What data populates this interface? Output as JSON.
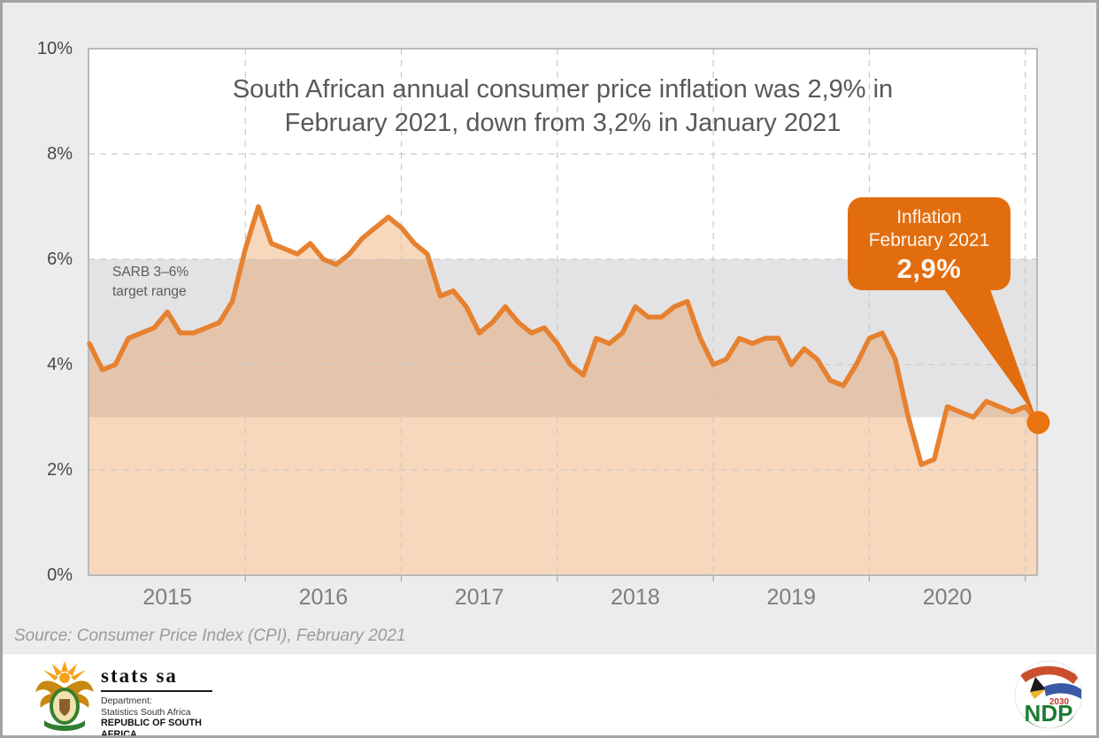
{
  "chart_data": {
    "type": "area",
    "title": "South African annual consumer price inflation was 2,9% in February 2021, down from 3,2% in January 2021",
    "title_lines": [
      "South African annual consumer price inflation was 2,9% in",
      "February 2021, down from 3,2% in January 2021"
    ],
    "frequency": "monthly",
    "x_start_month": "January 2015",
    "x_end_month": "February 2021",
    "x_tick_labels": [
      "2015",
      "2016",
      "2017",
      "2018",
      "2019",
      "2020"
    ],
    "y_tick_labels": [
      "0%",
      "2%",
      "4%",
      "6%",
      "8%",
      "10%"
    ],
    "y_tick_values": [
      0,
      2,
      4,
      6,
      8,
      10
    ],
    "ylim": [
      0,
      10
    ],
    "grid": "dashed",
    "series": [
      {
        "name": "CPI annual inflation rate (%)",
        "values": [
          4.4,
          3.9,
          4.0,
          4.5,
          4.6,
          4.7,
          5.0,
          4.6,
          4.6,
          4.7,
          4.8,
          5.2,
          6.2,
          7.0,
          6.3,
          6.2,
          6.1,
          6.3,
          6.0,
          5.9,
          6.1,
          6.4,
          6.6,
          6.8,
          6.6,
          6.3,
          6.1,
          5.3,
          5.4,
          5.1,
          4.6,
          4.8,
          5.1,
          4.8,
          4.6,
          4.7,
          4.4,
          4.0,
          3.8,
          4.5,
          4.4,
          4.6,
          5.1,
          4.9,
          4.9,
          5.1,
          5.2,
          4.5,
          4.0,
          4.1,
          4.5,
          4.4,
          4.5,
          4.5,
          4.0,
          4.3,
          4.1,
          3.7,
          3.6,
          4.0,
          4.5,
          4.6,
          4.1,
          3.0,
          2.1,
          2.2,
          3.2,
          3.1,
          3.0,
          3.3,
          3.2,
          3.1,
          3.2,
          2.9
        ]
      }
    ],
    "target_band": {
      "from": 3,
      "to": 6,
      "label_line1": "SARB 3–6%",
      "label_line2": "target range"
    },
    "annotation": {
      "line1": "Inflation",
      "line2": "February 2021",
      "value": "2,9%"
    },
    "end_point": {
      "month": "February 2021",
      "value": 2.9
    },
    "colors": {
      "line": "#E6812F",
      "area": "rgba(231,125,35,0.30)",
      "band": "#E3E3E5",
      "callout": "#E26D0E",
      "dot": "#E8730F",
      "plot_bg": "#FFFFFF"
    }
  },
  "source_note": "Source: Consumer Price Index (CPI), February 2021",
  "footer": {
    "statssa": {
      "brand": "stats sa",
      "dept_line1": "Department:",
      "dept_line2": "Statistics South Africa",
      "dept_line3": "REPUBLIC OF SOUTH AFRICA"
    },
    "ndp": {
      "text": "NDP",
      "year": "2030"
    }
  }
}
